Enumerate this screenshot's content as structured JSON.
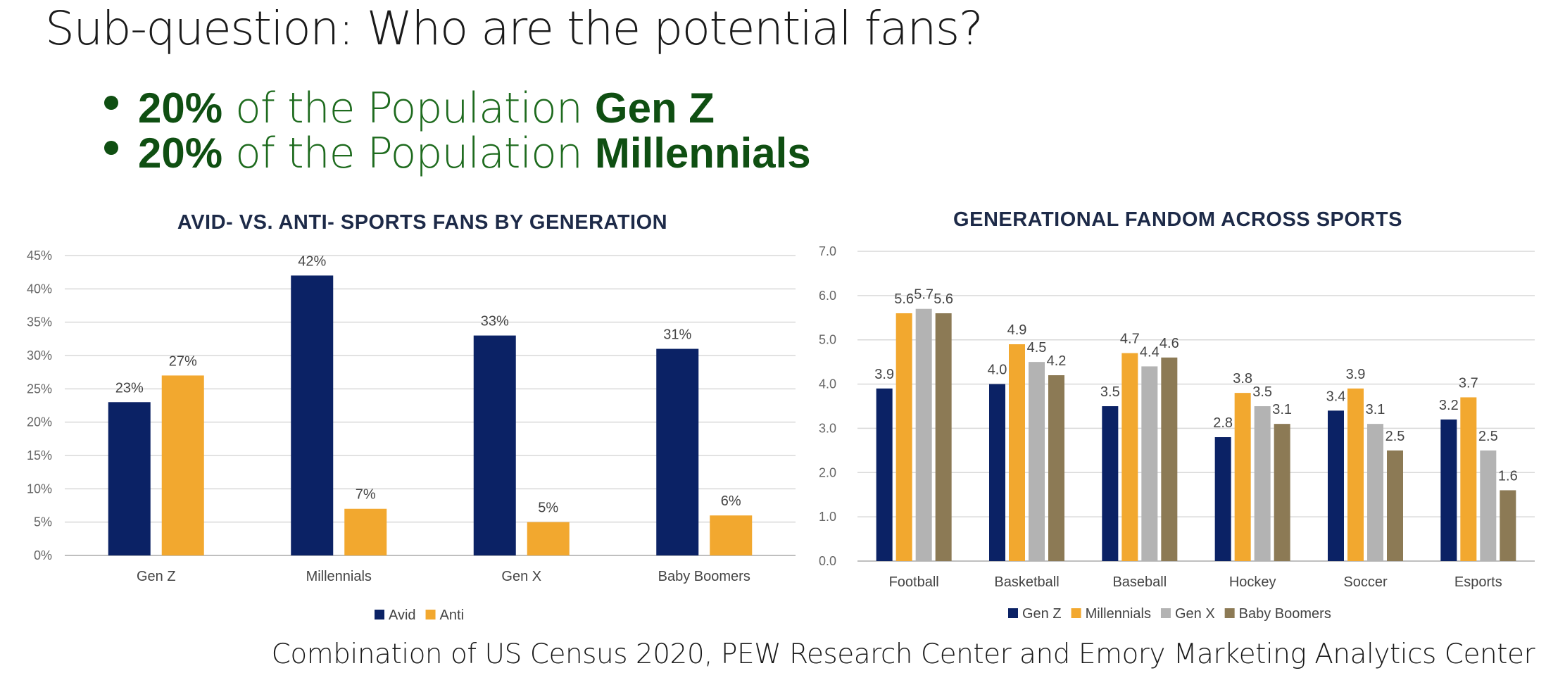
{
  "title": "Sub-question: Who are the potential fans?",
  "bullets": [
    {
      "pct": "20%",
      "middle": " of the Population ",
      "bold": "Gen Z"
    },
    {
      "pct": "20%",
      "middle": " of the Population ",
      "bold": "Millennials"
    }
  ],
  "source": "Combination of US Census 2020, PEW Research Center and Emory Marketing Analytics Center",
  "colors": {
    "navy": "#0b2265",
    "orange": "#f2a82f",
    "gray": "#b3b3b3",
    "olive": "#8c7a55"
  },
  "chart_data": [
    {
      "type": "bar",
      "title": "AVID- VS. ANTI- SPORTS FANS BY GENERATION",
      "categories": [
        "Gen Z",
        "Millennials",
        "Gen X",
        "Baby Boomers"
      ],
      "series": [
        {
          "name": "Avid",
          "values": [
            23,
            42,
            33,
            31
          ],
          "labels": [
            "23%",
            "42%",
            "33%",
            "31%"
          ],
          "color": "#0b2265"
        },
        {
          "name": "Anti",
          "values": [
            27,
            7,
            5,
            6
          ],
          "labels": [
            "27%",
            "7%",
            "5%",
            "6%"
          ],
          "color": "#f2a82f"
        }
      ],
      "y_ticks": [
        "0%",
        "5%",
        "10%",
        "15%",
        "20%",
        "25%",
        "30%",
        "35%",
        "40%",
        "45%"
      ],
      "ylim": [
        0,
        45
      ],
      "xlabel": "",
      "ylabel": "",
      "legend": "bottom",
      "grid": true
    },
    {
      "type": "bar",
      "title": "GENERATIONAL FANDOM ACROSS SPORTS",
      "categories": [
        "Football",
        "Basketball",
        "Baseball",
        "Hockey",
        "Soccer",
        "Esports"
      ],
      "series": [
        {
          "name": "Gen Z",
          "values": [
            3.9,
            4.0,
            3.5,
            2.8,
            3.4,
            3.2
          ],
          "labels": [
            "3.9",
            "4.0",
            "3.5",
            "2.8",
            "3.4",
            "3.2"
          ],
          "color": "#0b2265"
        },
        {
          "name": "Millennials",
          "values": [
            5.6,
            4.9,
            4.7,
            3.8,
            3.9,
            3.7
          ],
          "labels": [
            "5.6",
            "4.9",
            "4.7",
            "3.8",
            "3.9",
            "3.7"
          ],
          "color": "#f2a82f"
        },
        {
          "name": "Gen X",
          "values": [
            5.7,
            4.5,
            4.4,
            3.5,
            3.1,
            2.5
          ],
          "labels": [
            "5.7",
            "4.5",
            "4.4",
            "3.5",
            "3.1",
            "2.5"
          ],
          "color": "#b3b3b3"
        },
        {
          "name": "Baby Boomers",
          "values": [
            5.6,
            4.2,
            4.6,
            3.1,
            2.5,
            1.6
          ],
          "labels": [
            "5.6",
            "4.2",
            "4.6",
            "3.1",
            "2.5",
            "1.6"
          ],
          "color": "#8c7a55"
        }
      ],
      "y_ticks": [
        "0.0",
        "1.0",
        "2.0",
        "3.0",
        "4.0",
        "5.0",
        "6.0",
        "7.0"
      ],
      "ylim": [
        0,
        7
      ],
      "xlabel": "",
      "ylabel": "",
      "legend": "bottom",
      "grid": true
    }
  ]
}
